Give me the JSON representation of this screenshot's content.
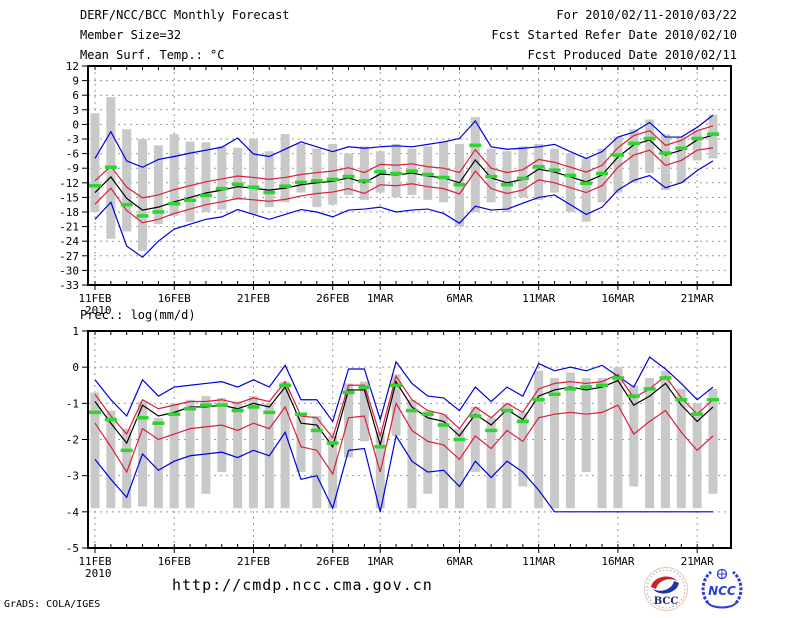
{
  "header": {
    "title": "DERF/NCC/BCC Monthly Forecast",
    "member_size": "Member Size=32",
    "for_range": "For 2010/02/11-2010/03/22",
    "fcst_started": "Fcst Started Refer Date 2010/02/10",
    "fcst_produced": "Fcst Produced Date 2010/02/11"
  },
  "footer": {
    "url": "http://cmdp.ncc.cma.gov.cn",
    "credit": "GrADS: COLA/IGES",
    "logos": {
      "bcc": "BCC",
      "ncc": "NCC"
    }
  },
  "colors": {
    "blue": "#0000e0",
    "red": "#dc1e3c",
    "green": "#2ed52e",
    "bar": "#c9c9c9",
    "grid": "#9a9a9a",
    "frame": "#000000",
    "text": "#000000",
    "logo_red": "#cc2222",
    "logo_blue": "#2233aa",
    "logo_navy": "#1a2a7a",
    "ncc_blue": "#2b3fd4"
  },
  "chart_data": [
    {
      "id": "mean-surface-temperature",
      "type": "line",
      "title": "Mean Surf. Temp.: °C",
      "ylim": [
        -33,
        12
      ],
      "yticks": [
        12,
        9,
        6,
        3,
        0,
        -3,
        -6,
        -9,
        -12,
        -15,
        -18,
        -21,
        -24,
        -27,
        -30,
        -33
      ],
      "n_days": 40,
      "x_ticks": {
        "days": [
          0,
          5,
          10,
          15,
          18,
          23,
          28,
          33,
          38
        ],
        "labels": [
          "11FEB",
          "16FEB",
          "21FEB",
          "26FEB",
          "1MAR",
          "6MAR",
          "11MAR",
          "16MAR",
          "21MAR"
        ],
        "year": "2010"
      },
      "series": [
        {
          "name": "member-range",
          "style": "bar",
          "color": "#c9c9c9",
          "lo": [
            -18.0,
            -23.5,
            -22.0,
            -26.0,
            -20.5,
            -18.8,
            -20.0,
            -18.0,
            -17.5,
            -15.5,
            -18.5,
            -17.0,
            -16.0,
            -14.0,
            -17.0,
            -16.5,
            -14.5,
            -15.5,
            -14.0,
            -15.0,
            -14.5,
            -15.5,
            -16.0,
            -21.0,
            -18.0,
            -16.0,
            -18.0,
            -15.0,
            -15.5,
            -14.0,
            -18.0,
            -20.0,
            -16.0,
            -14.0,
            -12.0,
            -10.0,
            -13.5,
            -12.0,
            -7.4,
            -7.0
          ],
          "hi": [
            2.3,
            5.6,
            -1.0,
            -3.0,
            -4.3,
            -2.0,
            -3.5,
            -3.7,
            -4.5,
            -4.8,
            -3.0,
            -5.5,
            -2.0,
            -4.0,
            -5.0,
            -4.0,
            -6.0,
            -4.5,
            -5.5,
            -4.0,
            -5.0,
            -4.5,
            -3.5,
            -4.0,
            1.5,
            -5.0,
            -5.5,
            -4.5,
            -4.0,
            -5.0,
            -6.0,
            -7.0,
            -5.0,
            -2.5,
            -1.0,
            1.0,
            -2.0,
            -2.5,
            -1.2,
            2.0
          ]
        },
        {
          "name": "ensemble-max",
          "style": "line",
          "color": "#0000e0",
          "values": [
            -7.0,
            -1.5,
            -7.5,
            -8.8,
            -7.2,
            -6.6,
            -5.9,
            -5.3,
            -4.7,
            -2.8,
            -6.1,
            -6.6,
            -5.1,
            -3.6,
            -4.6,
            -5.6,
            -4.6,
            -4.9,
            -4.6,
            -4.4,
            -4.6,
            -4.1,
            -3.6,
            -2.9,
            0.7,
            -4.6,
            -5.1,
            -4.9,
            -4.6,
            -4.1,
            -5.6,
            -7.0,
            -5.6,
            -2.6,
            -1.6,
            0.4,
            -2.6,
            -2.6,
            -0.6,
            1.9
          ]
        },
        {
          "name": "ensemble-min",
          "style": "line",
          "color": "#0000e0",
          "values": [
            -19.5,
            -16.0,
            -25.0,
            -27.3,
            -24.0,
            -21.5,
            -20.5,
            -19.5,
            -19.0,
            -17.5,
            -18.5,
            -19.5,
            -18.5,
            -17.5,
            -18.0,
            -19.0,
            -17.6,
            -17.4,
            -17.0,
            -18.0,
            -17.6,
            -17.4,
            -18.3,
            -20.3,
            -16.8,
            -17.6,
            -17.4,
            -16.2,
            -15.0,
            -14.5,
            -16.5,
            -18.5,
            -17.0,
            -13.5,
            -11.5,
            -10.5,
            -13.0,
            -12.0,
            -9.5,
            -7.5
          ]
        },
        {
          "name": "upper-spread",
          "style": "line",
          "color": "#dc1e3c",
          "values": [
            -11.6,
            -8.6,
            -12.9,
            -15.1,
            -14.5,
            -13.4,
            -12.6,
            -11.8,
            -11.2,
            -10.6,
            -10.9,
            -11.3,
            -10.9,
            -10.3,
            -9.9,
            -9.6,
            -8.9,
            -9.9,
            -8.2,
            -8.4,
            -8.1,
            -8.7,
            -9.0,
            -9.9,
            -5.2,
            -9.0,
            -9.9,
            -9.3,
            -7.2,
            -7.8,
            -8.8,
            -9.8,
            -8.4,
            -4.8,
            -2.3,
            -1.3,
            -4.3,
            -3.3,
            -1.3,
            -0.3
          ]
        },
        {
          "name": "lower-spread",
          "style": "line",
          "color": "#dc1e3c",
          "values": [
            -16.4,
            -13.1,
            -17.7,
            -20.2,
            -19.5,
            -18.3,
            -17.4,
            -16.5,
            -15.9,
            -15.2,
            -15.5,
            -15.8,
            -15.4,
            -14.7,
            -14.2,
            -13.9,
            -13.2,
            -14.2,
            -12.4,
            -12.6,
            -12.2,
            -12.8,
            -13.2,
            -14.3,
            -9.6,
            -13.2,
            -14.2,
            -13.5,
            -11.4,
            -12.0,
            -13.0,
            -14.0,
            -12.6,
            -8.8,
            -6.3,
            -5.3,
            -8.4,
            -7.4,
            -5.3,
            -4.8
          ]
        },
        {
          "name": "ensemble-mean",
          "style": "line",
          "color": "#000000",
          "values": [
            -14.0,
            -10.8,
            -15.2,
            -17.6,
            -17.0,
            -15.9,
            -15.0,
            -14.1,
            -13.5,
            -12.8,
            -13.1,
            -13.5,
            -13.1,
            -12.4,
            -12.0,
            -11.7,
            -11.0,
            -12.0,
            -10.2,
            -10.4,
            -10.0,
            -10.6,
            -11.0,
            -12.0,
            -7.3,
            -11.0,
            -12.0,
            -11.3,
            -9.2,
            -9.8,
            -10.8,
            -11.8,
            -10.4,
            -6.7,
            -4.2,
            -3.2,
            -6.3,
            -5.3,
            -3.2,
            -2.2
          ]
        },
        {
          "name": "observation",
          "style": "dash",
          "color": "#2ed52e",
          "values": [
            -12.6,
            -8.8,
            -16.5,
            -18.8,
            -18.0,
            -16.3,
            -15.6,
            -14.6,
            -13.2,
            -12.3,
            -12.9,
            -14.0,
            -12.7,
            -11.9,
            -11.6,
            -11.3,
            -10.7,
            -11.6,
            -9.7,
            -10.1,
            -9.6,
            -10.3,
            -10.9,
            -12.4,
            -4.3,
            -10.7,
            -12.4,
            -11.1,
            -8.7,
            -9.4,
            -10.5,
            -12.1,
            -10.1,
            -6.3,
            -3.9,
            -2.9,
            -5.9,
            -4.9,
            -2.9,
            -2.0
          ]
        }
      ]
    },
    {
      "id": "precipitation",
      "type": "line",
      "title": "Prec.: log(mm/d)",
      "ylim": [
        -5,
        1
      ],
      "yticks": [
        1,
        0,
        -1,
        -2,
        -3,
        -4,
        -5
      ],
      "n_days": 40,
      "x_ticks": {
        "days": [
          0,
          5,
          10,
          15,
          18,
          23,
          28,
          33,
          38
        ],
        "labels": [
          "11FEB",
          "16FEB",
          "21FEB",
          "26FEB",
          "1MAR",
          "6MAR",
          "11MAR",
          "16MAR",
          "21MAR"
        ],
        "year": "2010"
      },
      "series": [
        {
          "name": "member-range",
          "style": "bar",
          "color": "#c9c9c9",
          "lo": [
            -3.9,
            -3.9,
            -3.9,
            -3.85,
            -3.9,
            -3.9,
            -3.9,
            -3.5,
            -2.9,
            -3.9,
            -3.9,
            -3.9,
            -3.9,
            -2.9,
            -3.9,
            -3.9,
            -2.5,
            -2.05,
            -3.9,
            -1.9,
            -3.9,
            -3.5,
            -3.9,
            -3.9,
            -2.9,
            -3.9,
            -3.9,
            -3.3,
            -3.9,
            -3.9,
            -3.9,
            -2.9,
            -3.9,
            -3.9,
            -3.3,
            -3.9,
            -3.9,
            -3.9,
            -3.9,
            -3.5
          ],
          "hi": [
            -0.7,
            -1.2,
            -1.7,
            -0.95,
            -1.4,
            -1.0,
            -0.9,
            -0.8,
            -0.85,
            -0.95,
            -0.8,
            -1.0,
            -0.4,
            -1.3,
            -1.35,
            -1.9,
            -0.45,
            -0.4,
            -1.8,
            -0.2,
            -0.9,
            -1.2,
            -1.3,
            -1.7,
            -1.1,
            -1.4,
            -1.0,
            -1.25,
            -0.1,
            -0.3,
            -0.15,
            -0.3,
            -0.3,
            0.0,
            -0.5,
            -0.3,
            -0.1,
            -0.6,
            -1.0,
            -0.6
          ]
        },
        {
          "name": "ensemble-max",
          "style": "line",
          "color": "#0000e0",
          "values": [
            -0.35,
            -0.9,
            -1.35,
            -0.35,
            -0.8,
            -0.55,
            -0.5,
            -0.45,
            -0.4,
            -0.55,
            -0.35,
            -0.55,
            0.05,
            -0.9,
            -0.9,
            -1.5,
            -0.05,
            -0.05,
            -1.45,
            0.15,
            -0.45,
            -0.8,
            -0.85,
            -1.2,
            -0.55,
            -0.95,
            -0.55,
            -0.8,
            0.1,
            -0.1,
            0.0,
            -0.1,
            0.05,
            -0.25,
            -0.55,
            0.28,
            -0.05,
            -0.45,
            -0.9,
            -0.55
          ]
        },
        {
          "name": "ensemble-min",
          "style": "line",
          "color": "#0000e0",
          "values": [
            -2.55,
            -3.1,
            -3.6,
            -2.4,
            -2.85,
            -2.6,
            -2.45,
            -2.4,
            -2.35,
            -2.5,
            -2.3,
            -2.45,
            -1.8,
            -3.1,
            -3.0,
            -3.9,
            -2.3,
            -2.25,
            -4.0,
            -1.9,
            -2.6,
            -2.9,
            -2.85,
            -3.3,
            -2.6,
            -3.05,
            -2.6,
            -2.9,
            -3.4,
            -4.0,
            -4.0,
            -4.0,
            -4.0,
            -4.0,
            -4.0,
            -4.0,
            -4.0,
            -4.0,
            -4.0,
            -4.0
          ]
        },
        {
          "name": "upper-spread",
          "style": "line",
          "color": "#dc1e3c",
          "values": [
            -0.75,
            -1.35,
            -1.85,
            -0.9,
            -1.15,
            -1.05,
            -0.95,
            -0.95,
            -0.9,
            -1.0,
            -0.85,
            -0.95,
            -0.4,
            -1.35,
            -1.4,
            -1.95,
            -0.5,
            -0.5,
            -1.9,
            -0.25,
            -0.9,
            -1.2,
            -1.3,
            -1.7,
            -1.1,
            -1.4,
            -1.0,
            -1.25,
            -0.6,
            -0.45,
            -0.4,
            -0.45,
            -0.4,
            -0.2,
            -0.85,
            -0.6,
            -0.25,
            -0.85,
            -1.3,
            -0.9
          ]
        },
        {
          "name": "lower-spread",
          "style": "line",
          "color": "#dc1e3c",
          "values": [
            -1.55,
            -2.2,
            -2.9,
            -1.7,
            -2.0,
            -1.85,
            -1.7,
            -1.65,
            -1.6,
            -1.75,
            -1.55,
            -1.7,
            -1.1,
            -2.2,
            -2.3,
            -2.95,
            -1.4,
            -1.35,
            -2.9,
            -1.0,
            -1.75,
            -2.05,
            -2.15,
            -2.55,
            -1.9,
            -2.25,
            -1.75,
            -2.05,
            -1.4,
            -1.3,
            -1.25,
            -1.3,
            -1.25,
            -1.05,
            -1.85,
            -1.5,
            -1.2,
            -1.8,
            -2.3,
            -1.9
          ]
        },
        {
          "name": "ensemble-mean",
          "style": "line",
          "color": "#000000",
          "values": [
            -0.95,
            -1.55,
            -2.1,
            -1.05,
            -1.35,
            -1.25,
            -1.1,
            -1.1,
            -1.05,
            -1.15,
            -1.0,
            -1.1,
            -0.55,
            -1.55,
            -1.6,
            -2.2,
            -0.63,
            -0.63,
            -2.15,
            -0.4,
            -1.1,
            -1.4,
            -1.5,
            -1.9,
            -1.3,
            -1.6,
            -1.17,
            -1.45,
            -0.8,
            -0.63,
            -0.55,
            -0.63,
            -0.55,
            -0.37,
            -1.05,
            -0.8,
            -0.45,
            -1.05,
            -1.5,
            -1.1
          ]
        },
        {
          "name": "observation",
          "style": "dash",
          "color": "#2ed52e",
          "values": [
            -1.25,
            -1.45,
            -2.3,
            -1.4,
            -1.55,
            -1.3,
            -1.15,
            -1.05,
            -1.05,
            -1.2,
            -1.1,
            -1.25,
            -0.5,
            -1.3,
            -1.75,
            -2.1,
            -0.7,
            -0.55,
            -2.2,
            -0.5,
            -1.2,
            -1.3,
            -1.6,
            -2.0,
            -1.35,
            -1.75,
            -1.2,
            -1.5,
            -0.9,
            -0.75,
            -0.6,
            -0.55,
            -0.5,
            -0.3,
            -0.8,
            -0.6,
            -0.3,
            -0.9,
            -1.3,
            -0.9
          ]
        }
      ]
    }
  ]
}
